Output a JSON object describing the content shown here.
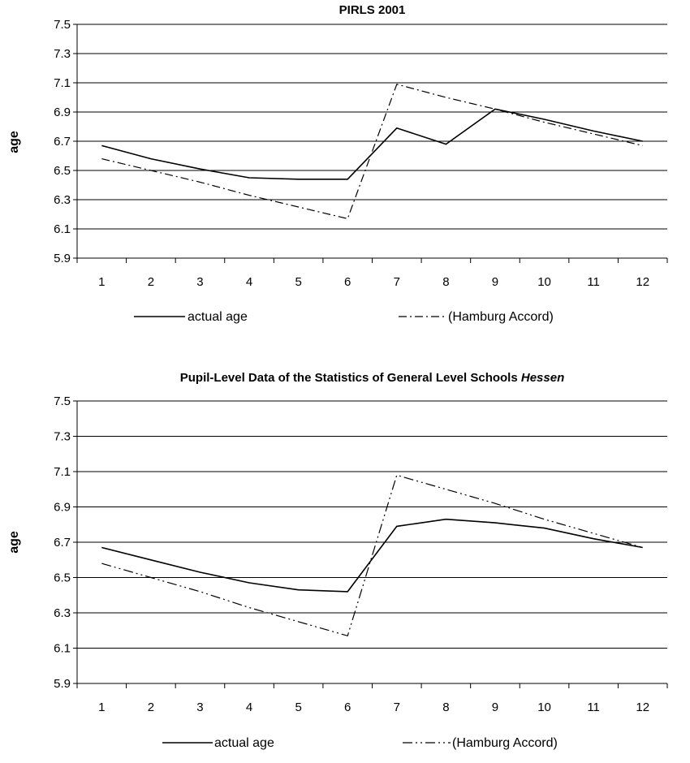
{
  "chart_data": [
    {
      "type": "line",
      "title": "PIRLS 2001",
      "title_italic": "",
      "ylabel": "age",
      "xlabel": "",
      "categories": [
        "1",
        "2",
        "3",
        "4",
        "5",
        "6",
        "7",
        "8",
        "9",
        "10",
        "11",
        "12"
      ],
      "yticks": [
        "7.5",
        "7.3",
        "7.1",
        "6.9",
        "6.7",
        "6.5",
        "6.3",
        "6.1",
        "5.9"
      ],
      "ylim": [
        5.9,
        7.5
      ],
      "grid": true,
      "legend": "bottom",
      "series": [
        {
          "name": "actual age",
          "style": "solid",
          "values": [
            6.67,
            6.58,
            6.51,
            6.45,
            6.44,
            6.44,
            6.79,
            6.68,
            6.92,
            6.85,
            6.77,
            6.7
          ]
        },
        {
          "name": "(Hamburg Accord)",
          "style": "dash-dot",
          "values": [
            6.58,
            6.5,
            6.42,
            6.33,
            6.25,
            6.17,
            7.09,
            7.0,
            6.92,
            6.83,
            6.75,
            6.67
          ]
        }
      ]
    },
    {
      "type": "line",
      "title": "Pupil-Level Data of the Statistics of General Level Schools ",
      "title_italic": "Hessen",
      "ylabel": "age",
      "xlabel": "",
      "categories": [
        "1",
        "2",
        "3",
        "4",
        "5",
        "6",
        "7",
        "8",
        "9",
        "10",
        "11",
        "12"
      ],
      "yticks": [
        "7.5",
        "7.3",
        "7.1",
        "6.9",
        "6.7",
        "6.5",
        "6.3",
        "6.1",
        "5.9"
      ],
      "ylim": [
        5.9,
        7.5
      ],
      "grid": true,
      "legend": "bottom",
      "series": [
        {
          "name": "actual age",
          "style": "solid",
          "values": [
            6.67,
            6.6,
            6.53,
            6.47,
            6.43,
            6.42,
            6.79,
            6.83,
            6.81,
            6.78,
            6.72,
            6.67
          ]
        },
        {
          "name": "(Hamburg Accord)",
          "style": "dash-dot-dot",
          "values": [
            6.58,
            6.5,
            6.42,
            6.33,
            6.25,
            6.17,
            7.08,
            7.0,
            6.92,
            6.83,
            6.75,
            6.67
          ]
        }
      ]
    }
  ]
}
